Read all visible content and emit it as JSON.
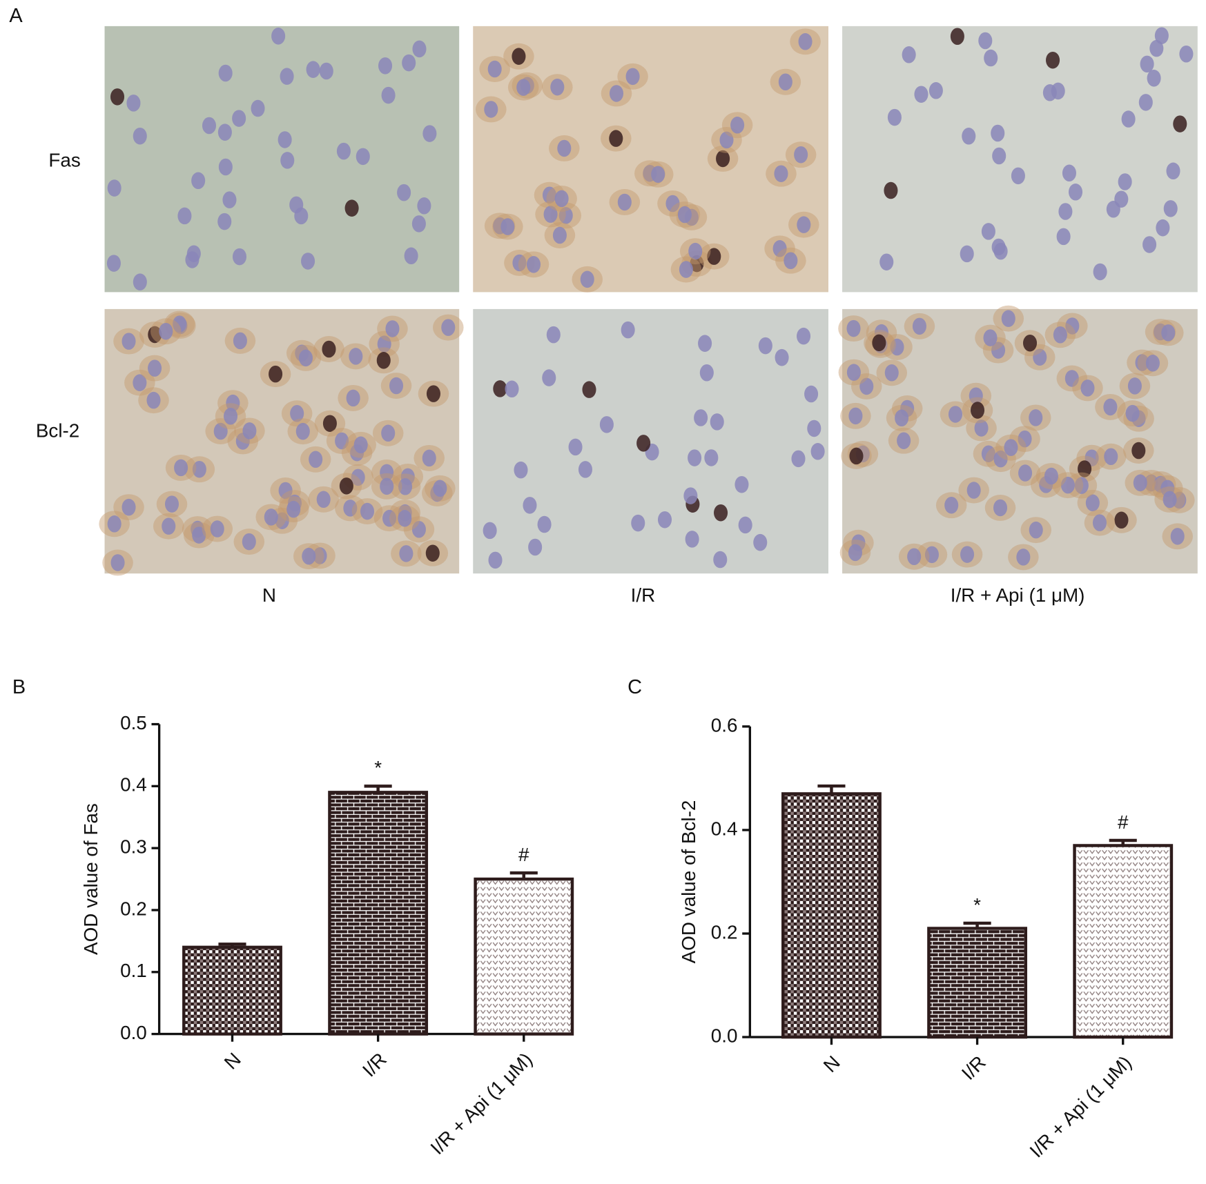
{
  "panel_labels": [
    "A",
    "B",
    "C"
  ],
  "figure_a": {
    "rows": [
      "Fas",
      "Bcl-2"
    ],
    "columns": [
      "N",
      "I/R",
      "I/R + Api (1 μM)"
    ]
  },
  "chart_data": [
    {
      "type": "bar",
      "ylabel": "AOD value of Fas",
      "categories": [
        "N",
        "I/R",
        "I/R + Api (1 μM)"
      ],
      "values": [
        0.14,
        0.39,
        0.25
      ],
      "errors": [
        0.005,
        0.01,
        0.01
      ],
      "markers": [
        null,
        "*",
        "#"
      ],
      "color": "#2e1c1c",
      "patterns": [
        "checker",
        "brick",
        "chevron"
      ],
      "ylim": [
        0,
        0.5
      ],
      "yticks": [
        {
          "value": 0,
          "label": "0.0"
        },
        0.1,
        0.2,
        0.3,
        0.4,
        0.5
      ]
    },
    {
      "type": "bar",
      "ylabel": "AOD value of Bcl-2",
      "categories": [
        "N",
        "I/R",
        "I/R + Api (1 μM)"
      ],
      "values": [
        0.47,
        0.21,
        0.37
      ],
      "errors": [
        0.015,
        0.01,
        0.01
      ],
      "markers": [
        null,
        "*",
        "#"
      ],
      "color": "#2e1c1c",
      "patterns": [
        "checker",
        "brick",
        "chevron"
      ],
      "ylim": [
        0,
        0.6
      ],
      "yticks": [
        {
          "value": 0,
          "label": "0.0"
        },
        0.2,
        0.4,
        0.6
      ]
    }
  ]
}
